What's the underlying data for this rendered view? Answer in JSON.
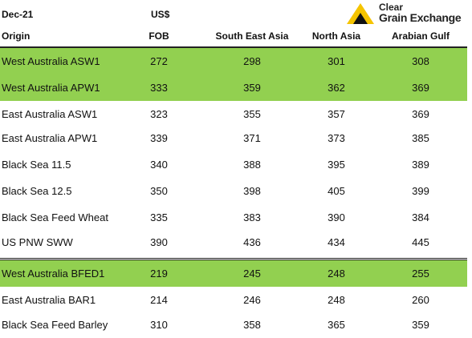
{
  "header": {
    "period": "Dec-21",
    "currency": "US$",
    "origin_label": "Origin",
    "columns": [
      "FOB",
      "South East Asia",
      "North Asia",
      "Arabian Gulf"
    ]
  },
  "logo": {
    "line1": "Clear",
    "line2": "Grain Exchange",
    "accent_color": "#f5c400"
  },
  "colors": {
    "highlight": "#92d050"
  },
  "rows": [
    {
      "origin": "West Australia ASW1",
      "values": [
        "272",
        "298",
        "301",
        "308"
      ]
    },
    {
      "origin": "West Australia APW1",
      "values": [
        "333",
        "359",
        "362",
        "369"
      ]
    },
    {
      "origin": "East Australia ASW1",
      "values": [
        "323",
        "355",
        "357",
        "369"
      ]
    },
    {
      "origin": "East Australia APW1",
      "values": [
        "339",
        "371",
        "373",
        "385"
      ]
    },
    {
      "origin": "Black Sea 11.5",
      "values": [
        "340",
        "388",
        "395",
        "389"
      ]
    },
    {
      "origin": "Black Sea 12.5",
      "values": [
        "350",
        "398",
        "405",
        "399"
      ]
    },
    {
      "origin": "Black Sea Feed Wheat",
      "values": [
        "335",
        "383",
        "390",
        "384"
      ]
    },
    {
      "origin": "US PNW SWW",
      "values": [
        "390",
        "436",
        "434",
        "445"
      ]
    },
    {
      "origin": "West Australia BFED1",
      "values": [
        "219",
        "245",
        "248",
        "255"
      ]
    },
    {
      "origin": "East Australia BAR1",
      "values": [
        "214",
        "246",
        "248",
        "260"
      ]
    },
    {
      "origin": "Black Sea Feed Barley",
      "values": [
        "310",
        "358",
        "365",
        "359"
      ]
    }
  ]
}
